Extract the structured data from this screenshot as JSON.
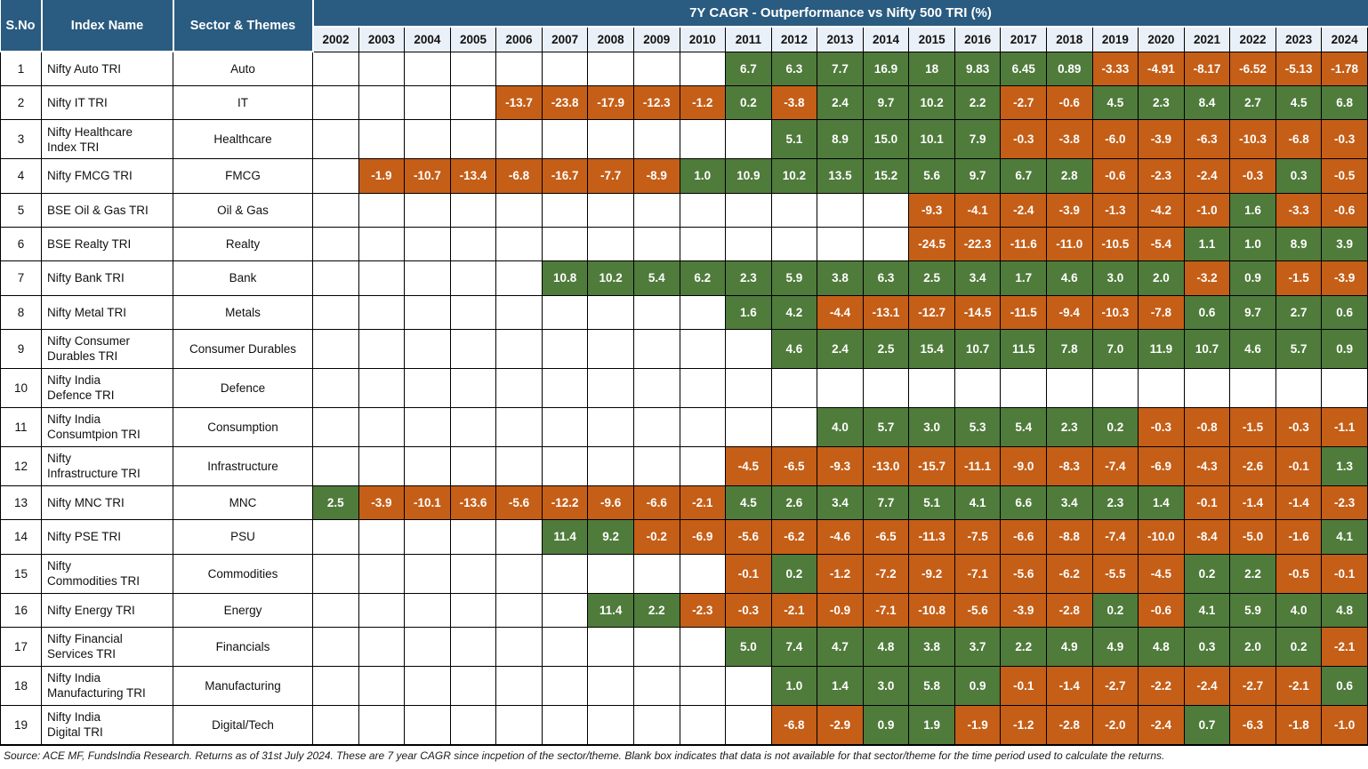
{
  "palette": {
    "header_blue": "#2A5B80",
    "year_row_bg": "#EAF0F8",
    "positive_green": "#4F7B3B",
    "negative_orange": "#C55E17",
    "grid_border": "#000000",
    "cell_text": "#FFFFFF"
  },
  "header": {
    "sno_label": "S.No",
    "index_label": "Index Name",
    "sector_label": "Sector & Themes",
    "title": "7Y CAGR - Outperformance vs Nifty 500 TRI (%)",
    "years": [
      "2002",
      "2003",
      "2004",
      "2005",
      "2006",
      "2007",
      "2008",
      "2009",
      "2010",
      "2011",
      "2012",
      "2013",
      "2014",
      "2015",
      "2016",
      "2017",
      "2018",
      "2019",
      "2020",
      "2021",
      "2022",
      "2023",
      "2024"
    ]
  },
  "rows": [
    {
      "sno": "1",
      "index": "Nifty Auto TRI",
      "sector": "Auto",
      "values": [
        null,
        null,
        null,
        null,
        null,
        null,
        null,
        null,
        null,
        "6.7",
        "6.3",
        "7.7",
        "16.9",
        "18",
        "9.83",
        "6.45",
        "0.89",
        "-3.33",
        "-4.91",
        "-8.17",
        "-6.52",
        "-5.13",
        "-1.78"
      ]
    },
    {
      "sno": "2",
      "index": "Nifty IT TRI",
      "sector": "IT",
      "values": [
        null,
        null,
        null,
        null,
        "-13.7",
        "-23.8",
        "-17.9",
        "-12.3",
        "-1.2",
        "0.2",
        "-3.8",
        "2.4",
        "9.7",
        "10.2",
        "2.2",
        "-2.7",
        "-0.6",
        "4.5",
        "2.3",
        "8.4",
        "2.7",
        "4.5",
        "6.8"
      ]
    },
    {
      "sno": "3",
      "index": "Nifty Healthcare\nIndex TRI",
      "sector": "Healthcare",
      "values": [
        null,
        null,
        null,
        null,
        null,
        null,
        null,
        null,
        null,
        null,
        "5.1",
        "8.9",
        "15.0",
        "10.1",
        "7.9",
        "-0.3",
        "-3.8",
        "-6.0",
        "-3.9",
        "-6.3",
        "-10.3",
        "-6.8",
        "-0.3"
      ]
    },
    {
      "sno": "4",
      "index": "Nifty FMCG TRI",
      "sector": "FMCG",
      "values": [
        null,
        "-1.9",
        "-10.7",
        "-13.4",
        "-6.8",
        "-16.7",
        "-7.7",
        "-8.9",
        "1.0",
        "10.9",
        "10.2",
        "13.5",
        "15.2",
        "5.6",
        "9.7",
        "6.7",
        "2.8",
        "-0.6",
        "-2.3",
        "-2.4",
        "-0.3",
        "0.3",
        "-0.5"
      ]
    },
    {
      "sno": "5",
      "index": "BSE Oil & Gas TRI",
      "sector": "Oil & Gas",
      "values": [
        null,
        null,
        null,
        null,
        null,
        null,
        null,
        null,
        null,
        null,
        null,
        null,
        null,
        "-9.3",
        "-4.1",
        "-2.4",
        "-3.9",
        "-1.3",
        "-4.2",
        "-1.0",
        "1.6",
        "-3.3",
        "-0.6"
      ]
    },
    {
      "sno": "6",
      "index": "BSE Realty TRI",
      "sector": "Realty",
      "values": [
        null,
        null,
        null,
        null,
        null,
        null,
        null,
        null,
        null,
        null,
        null,
        null,
        null,
        "-24.5",
        "-22.3",
        "-11.6",
        "-11.0",
        "-10.5",
        "-5.4",
        "1.1",
        "1.0",
        "8.9",
        "3.9"
      ]
    },
    {
      "sno": "7",
      "index": "Nifty Bank TRI",
      "sector": "Bank",
      "values": [
        null,
        null,
        null,
        null,
        null,
        "10.8",
        "10.2",
        "5.4",
        "6.2",
        "2.3",
        "5.9",
        "3.8",
        "6.3",
        "2.5",
        "3.4",
        "1.7",
        "4.6",
        "3.0",
        "2.0",
        "-3.2",
        "0.9",
        "-1.5",
        "-3.9"
      ]
    },
    {
      "sno": "8",
      "index": "Nifty Metal TRI",
      "sector": "Metals",
      "values": [
        null,
        null,
        null,
        null,
        null,
        null,
        null,
        null,
        null,
        "1.6",
        "4.2",
        "-4.4",
        "-13.1",
        "-12.7",
        "-14.5",
        "-11.5",
        "-9.4",
        "-10.3",
        "-7.8",
        "0.6",
        "9.7",
        "2.7",
        "0.6"
      ]
    },
    {
      "sno": "9",
      "index": "Nifty Consumer\nDurables TRI",
      "sector": "Consumer Durables",
      "values": [
        null,
        null,
        null,
        null,
        null,
        null,
        null,
        null,
        null,
        null,
        "4.6",
        "2.4",
        "2.5",
        "15.4",
        "10.7",
        "11.5",
        "7.8",
        "7.0",
        "11.9",
        "10.7",
        "4.6",
        "5.7",
        "0.9"
      ]
    },
    {
      "sno": "10",
      "index": "Nifty India\nDefence TRI",
      "sector": "Defence",
      "values": [
        null,
        null,
        null,
        null,
        null,
        null,
        null,
        null,
        null,
        null,
        null,
        null,
        null,
        null,
        null,
        null,
        null,
        null,
        null,
        null,
        null,
        null,
        null
      ]
    },
    {
      "sno": "11",
      "index": "Nifty India\nConsumtpion TRI",
      "sector": "Consumption",
      "values": [
        null,
        null,
        null,
        null,
        null,
        null,
        null,
        null,
        null,
        null,
        null,
        "4.0",
        "5.7",
        "3.0",
        "5.3",
        "5.4",
        "2.3",
        "0.2",
        "-0.3",
        "-0.8",
        "-1.5",
        "-0.3",
        "-1.1"
      ]
    },
    {
      "sno": "12",
      "index": "Nifty\nInfrastructure TRI",
      "sector": "Infrastructure",
      "values": [
        null,
        null,
        null,
        null,
        null,
        null,
        null,
        null,
        null,
        "-4.5",
        "-6.5",
        "-9.3",
        "-13.0",
        "-15.7",
        "-11.1",
        "-9.0",
        "-8.3",
        "-7.4",
        "-6.9",
        "-4.3",
        "-2.6",
        "-0.1",
        "1.3"
      ]
    },
    {
      "sno": "13",
      "index": "Nifty MNC TRI",
      "sector": "MNC",
      "values": [
        "2.5",
        "-3.9",
        "-10.1",
        "-13.6",
        "-5.6",
        "-12.2",
        "-9.6",
        "-6.6",
        "-2.1",
        "4.5",
        "2.6",
        "3.4",
        "7.7",
        "5.1",
        "4.1",
        "6.6",
        "3.4",
        "2.3",
        "1.4",
        "-0.1",
        "-1.4",
        "-1.4",
        "-2.3"
      ]
    },
    {
      "sno": "14",
      "index": "Nifty PSE TRI",
      "sector": "PSU",
      "values": [
        null,
        null,
        null,
        null,
        null,
        "11.4",
        "9.2",
        "-0.2",
        "-6.9",
        "-5.6",
        "-6.2",
        "-4.6",
        "-6.5",
        "-11.3",
        "-7.5",
        "-6.6",
        "-8.8",
        "-7.4",
        "-10.0",
        "-8.4",
        "-5.0",
        "-1.6",
        "4.1"
      ]
    },
    {
      "sno": "15",
      "index": "Nifty\nCommodities TRI",
      "sector": "Commodities",
      "values": [
        null,
        null,
        null,
        null,
        null,
        null,
        null,
        null,
        null,
        "-0.1",
        "0.2",
        "-1.2",
        "-7.2",
        "-9.2",
        "-7.1",
        "-5.6",
        "-6.2",
        "-5.5",
        "-4.5",
        "0.2",
        "2.2",
        "-0.5",
        "-0.1"
      ]
    },
    {
      "sno": "16",
      "index": "Nifty Energy TRI",
      "sector": "Energy",
      "values": [
        null,
        null,
        null,
        null,
        null,
        null,
        "11.4",
        "2.2",
        "-2.3",
        "-0.3",
        "-2.1",
        "-0.9",
        "-7.1",
        "-10.8",
        "-5.6",
        "-3.9",
        "-2.8",
        "0.2",
        "-0.6",
        "4.1",
        "5.9",
        "4.0",
        "4.8"
      ]
    },
    {
      "sno": "17",
      "index": "Nifty Financial\nServices TRI",
      "sector": "Financials",
      "values": [
        null,
        null,
        null,
        null,
        null,
        null,
        null,
        null,
        null,
        "5.0",
        "7.4",
        "4.7",
        "4.8",
        "3.8",
        "3.7",
        "2.2",
        "4.9",
        "4.9",
        "4.8",
        "0.3",
        "2.0",
        "0.2",
        "-2.1"
      ]
    },
    {
      "sno": "18",
      "index": "Nifty India\nManufacturing TRI",
      "sector": "Manufacturing",
      "values": [
        null,
        null,
        null,
        null,
        null,
        null,
        null,
        null,
        null,
        null,
        "1.0",
        "1.4",
        "3.0",
        "5.8",
        "0.9",
        "-0.1",
        "-1.4",
        "-2.7",
        "-2.2",
        "-2.4",
        "-2.7",
        "-2.1",
        "0.6"
      ]
    },
    {
      "sno": "19",
      "index": "Nifty India\nDigital TRI",
      "sector": "Digital/Tech",
      "values": [
        null,
        null,
        null,
        null,
        null,
        null,
        null,
        null,
        null,
        null,
        "-6.8",
        "-2.9",
        "0.9",
        "1.9",
        "-1.9",
        "-1.2",
        "-2.8",
        "-2.0",
        "-2.4",
        "0.7",
        "-6.3",
        "-1.8",
        "-1.0"
      ]
    }
  ],
  "footer": {
    "source_note": "Source: ACE MF, FundsIndia Research. Returns as of 31st July 2024. These are 7 year CAGR since incpetion of the sector/theme. Blank box indicates that data is not available for that sector/theme for the time period used to calculate the returns."
  }
}
